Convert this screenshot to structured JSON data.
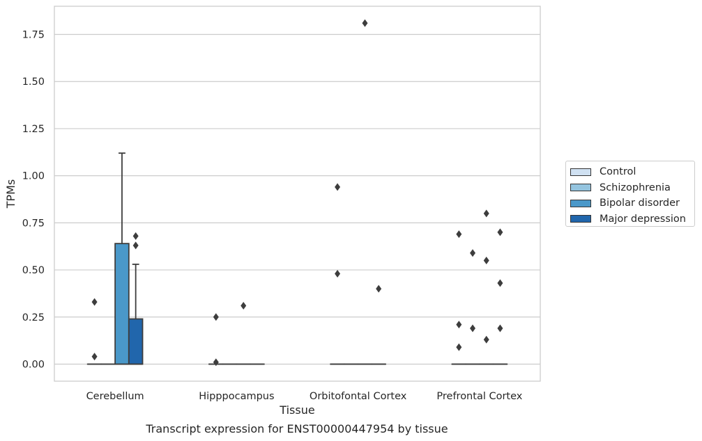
{
  "chart_data": {
    "type": "box",
    "xlabel": "Tissue",
    "ylabel": "TPMs",
    "caption": "Transcript expression for ENST00000447954 by tissue",
    "ylim": [
      -0.09,
      1.9
    ],
    "yticks": [
      "0.00",
      "0.25",
      "0.50",
      "0.75",
      "1.00",
      "1.25",
      "1.50",
      "1.75"
    ],
    "grid": "horizontal",
    "legend_position": "right",
    "categories": [
      "Cerebellum",
      "Hipppocampus",
      "Orbitofontal Cortex",
      "Prefrontal Cortex"
    ],
    "series": [
      {
        "name": "Control",
        "color": "#d0e1f2",
        "boxes": [
          {
            "q1": 0,
            "median": 0,
            "q3": 0,
            "whisker_low": 0,
            "whisker_high": 0,
            "outliers": [
              0.33,
              0.04
            ]
          },
          {
            "q1": 0,
            "median": 0,
            "q3": 0,
            "whisker_low": 0,
            "whisker_high": 0,
            "outliers": [
              0.25,
              0.01
            ]
          },
          {
            "q1": 0,
            "median": 0,
            "q3": 0,
            "whisker_low": 0,
            "whisker_high": 0,
            "outliers": [
              0.94,
              0.48
            ]
          },
          {
            "q1": 0,
            "median": 0,
            "q3": 0,
            "whisker_low": 0,
            "whisker_high": 0,
            "outliers": [
              0.69,
              0.21,
              0.09
            ]
          }
        ]
      },
      {
        "name": "Schizophrenia",
        "color": "#94c4df",
        "boxes": [
          {
            "q1": 0,
            "median": 0,
            "q3": 0,
            "whisker_low": 0,
            "whisker_high": 0,
            "outliers": []
          },
          {
            "q1": 0,
            "median": 0,
            "q3": 0,
            "whisker_low": 0,
            "whisker_high": 0,
            "outliers": []
          },
          {
            "q1": 0,
            "median": 0,
            "q3": 0,
            "whisker_low": 0,
            "whisker_high": 0,
            "outliers": []
          },
          {
            "q1": 0,
            "median": 0,
            "q3": 0,
            "whisker_low": 0,
            "whisker_high": 0,
            "outliers": [
              0.59,
              0.19
            ]
          }
        ]
      },
      {
        "name": "Bipolar disorder",
        "color": "#4a98c9",
        "boxes": [
          {
            "q1": 0,
            "median": 0,
            "q3": 0.64,
            "whisker_low": 0,
            "whisker_high": 1.12,
            "outliers": []
          },
          {
            "q1": 0,
            "median": 0,
            "q3": 0,
            "whisker_low": 0,
            "whisker_high": 0,
            "outliers": [
              0.31
            ]
          },
          {
            "q1": 0,
            "median": 0,
            "q3": 0,
            "whisker_low": 0,
            "whisker_high": 0,
            "outliers": [
              1.81
            ]
          },
          {
            "q1": 0,
            "median": 0,
            "q3": 0,
            "whisker_low": 0,
            "whisker_high": 0,
            "outliers": [
              0.8,
              0.55,
              0.13
            ]
          }
        ]
      },
      {
        "name": "Major depression",
        "color": "#2166ac",
        "boxes": [
          {
            "q1": 0,
            "median": 0,
            "q3": 0.24,
            "whisker_low": 0,
            "whisker_high": 0.53,
            "outliers": [
              0.68,
              0.63
            ]
          },
          {
            "q1": 0,
            "median": 0,
            "q3": 0,
            "whisker_low": 0,
            "whisker_high": 0,
            "outliers": []
          },
          {
            "q1": 0,
            "median": 0,
            "q3": 0,
            "whisker_low": 0,
            "whisker_high": 0,
            "outliers": [
              0.4
            ]
          },
          {
            "q1": 0,
            "median": 0,
            "q3": 0,
            "whisker_low": 0,
            "whisker_high": 0,
            "outliers": [
              0.7,
              0.43,
              0.19
            ]
          }
        ]
      }
    ]
  }
}
